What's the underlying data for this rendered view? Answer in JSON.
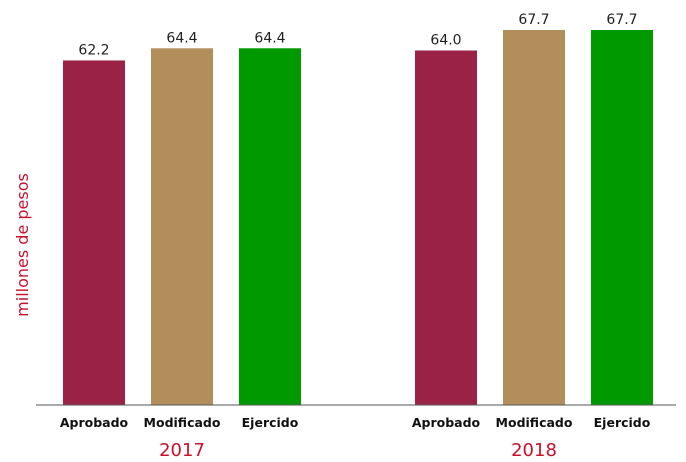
{
  "chart_data": {
    "type": "bar",
    "ylabel": "millones de pesos",
    "ylim": [
      0,
      67.7
    ],
    "categories": [
      "Aprobado",
      "Modificado",
      "Ejercido"
    ],
    "groups": [
      {
        "name": "2017",
        "values": [
          62.2,
          64.4,
          64.4
        ],
        "labels": [
          "62.2",
          "64.4",
          "64.4"
        ]
      },
      {
        "name": "2018",
        "values": [
          64.0,
          67.7,
          67.7
        ],
        "labels": [
          "64.0",
          "67.7",
          "67.7"
        ]
      }
    ],
    "colors": [
      "#9b2247",
      "#b38e5d",
      "#009900"
    ],
    "axis_color": "#555555",
    "accent_color": "#c8102e",
    "grid": false,
    "legend": "none"
  }
}
